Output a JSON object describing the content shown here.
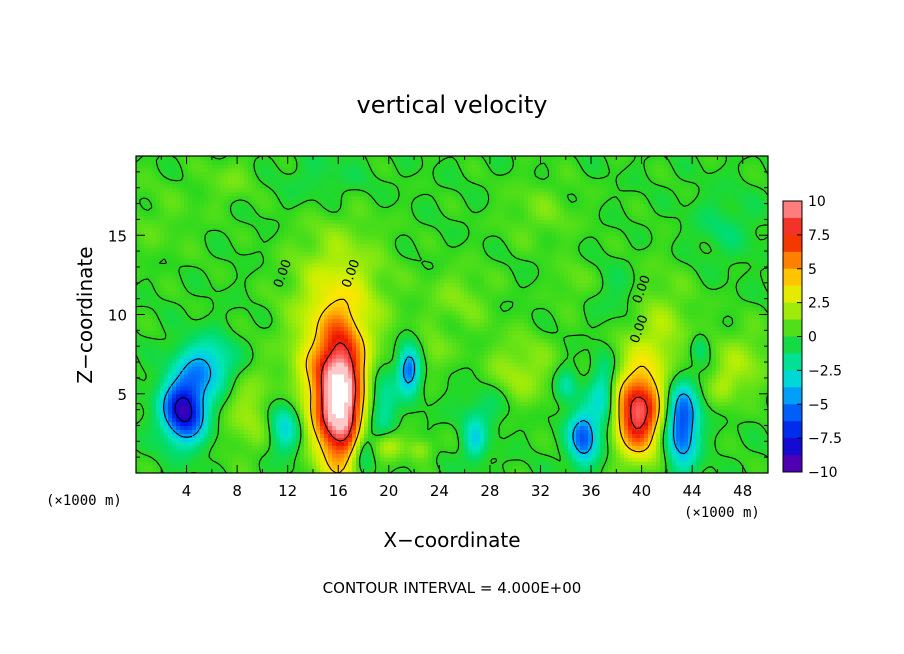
{
  "chart_data": {
    "type": "heatmap",
    "title": "vertical velocity",
    "xlabel": "X−coordinate",
    "ylabel": "Z−coordinate",
    "x_unit_left": "(×1000 m)",
    "x_unit_right": "(×1000 m)",
    "footer": "CONTOUR INTERVAL = 4.000E+00",
    "xlim": [
      0,
      50
    ],
    "ylim": [
      0,
      20
    ],
    "x_ticks": [
      4,
      8,
      12,
      16,
      20,
      24,
      28,
      32,
      36,
      40,
      44,
      48
    ],
    "x_tick_labels": [
      "4",
      "8",
      "12",
      "16",
      "20",
      "24",
      "28",
      "32",
      "36",
      "40",
      "44",
      "48"
    ],
    "y_ticks": [
      5,
      10,
      15
    ],
    "y_tick_labels": [
      "5",
      "10",
      "15"
    ],
    "contour_labels": [
      "0.00",
      "0.00",
      "0.00",
      "0.00"
    ],
    "colorbar": {
      "range": [
        -10,
        10
      ],
      "ticks": [
        10,
        7.5,
        5,
        2.5,
        0,
        -2.5,
        -5,
        -7.5,
        -10
      ],
      "tick_labels": [
        "10",
        "7.5",
        "5",
        "2.5",
        "0",
        "−2.5",
        "−5",
        "−7.5",
        "−10"
      ]
    },
    "features": [
      {
        "x": 16.1,
        "z": 4.6,
        "sx": 1.3,
        "sz": 2.9,
        "amp": 12
      },
      {
        "x": 39.7,
        "z": 3.7,
        "sx": 1.3,
        "sz": 1.8,
        "amp": 8.5
      },
      {
        "x": 3.8,
        "z": 4.0,
        "sx": 1.2,
        "sz": 1.4,
        "amp": -9
      },
      {
        "x": 5.6,
        "z": 6.8,
        "sx": 1.6,
        "sz": 1.2,
        "amp": -4
      },
      {
        "x": 43.2,
        "z": 3.2,
        "sx": 0.9,
        "sz": 1.9,
        "amp": -7
      },
      {
        "x": 35.4,
        "z": 2.3,
        "sx": 0.8,
        "sz": 1.2,
        "amp": -6
      },
      {
        "x": 37.0,
        "z": 5.0,
        "sx": 0.7,
        "sz": 1.6,
        "amp": -3.5
      },
      {
        "x": 21.6,
        "z": 6.6,
        "sx": 0.6,
        "sz": 1.0,
        "amp": -6
      },
      {
        "x": 19.5,
        "z": 4.5,
        "sx": 0.8,
        "sz": 1.4,
        "amp": -3
      },
      {
        "x": 11.8,
        "z": 3.0,
        "sx": 0.9,
        "sz": 1.3,
        "amp": -3.5
      },
      {
        "x": 18.0,
        "z": 1.5,
        "sx": 0.6,
        "sz": 1.0,
        "amp": -3
      },
      {
        "x": 26.8,
        "z": 2.0,
        "sx": 0.6,
        "sz": 0.9,
        "amp": -3
      },
      {
        "x": 34.0,
        "z": 5.5,
        "sx": 0.6,
        "sz": 0.8,
        "amp": -2.5
      },
      {
        "x": 44.6,
        "z": 8.0,
        "sx": 0.5,
        "sz": 0.6,
        "amp": -2
      },
      {
        "x": 16.0,
        "z": 10.5,
        "sx": 2.6,
        "sz": 3.5,
        "amp": 3
      },
      {
        "x": 41.0,
        "z": 8.0,
        "sx": 2.2,
        "sz": 3.0,
        "amp": 2.2
      },
      {
        "x": 9.0,
        "z": 4.0,
        "sx": 1.5,
        "sz": 2.0,
        "amp": 1.8
      },
      {
        "x": 13.5,
        "z": 5.5,
        "sx": 1.2,
        "sz": 2.5,
        "amp": 1.5
      },
      {
        "x": 30.5,
        "z": 6.5,
        "sx": 2.0,
        "sz": 1.6,
        "amp": 1.8
      },
      {
        "x": 48.0,
        "z": 7.0,
        "sx": 1.5,
        "sz": 1.5,
        "amp": 1.8
      },
      {
        "x": 46.5,
        "z": 5.5,
        "sx": 0.7,
        "sz": 0.8,
        "amp": 1.5
      },
      {
        "x": 20.0,
        "z": 1.8,
        "sx": 0.8,
        "sz": 0.6,
        "amp": 2.5
      },
      {
        "x": 22.5,
        "z": 1.5,
        "sx": 0.7,
        "sz": 0.5,
        "amp": 2
      },
      {
        "x": 23.5,
        "z": 7.5,
        "sx": 0.8,
        "sz": 0.8,
        "amp": 1.5
      },
      {
        "x": 25.5,
        "z": 11.0,
        "sx": 2.0,
        "sz": 1.5,
        "amp": 1.2
      },
      {
        "x": 32.0,
        "z": 16.5,
        "sx": 2.2,
        "sz": 1.5,
        "amp": 1.0
      },
      {
        "x": 7.5,
        "z": 18.5,
        "sx": 1.5,
        "sz": 1.0,
        "amp": 1.0
      },
      {
        "x": 38.5,
        "z": 11.0,
        "sx": 1.3,
        "sz": 1.5,
        "amp": -1.2
      },
      {
        "x": 46.5,
        "z": 15.5,
        "sx": 1.8,
        "sz": 1.5,
        "amp": -1.0
      },
      {
        "x": 2.0,
        "z": 16.0,
        "sx": 2.5,
        "sz": 2.0,
        "amp": 0.6
      },
      {
        "x": 15.0,
        "z": 18.5,
        "sx": 2.5,
        "sz": 1.2,
        "amp": -0.8
      },
      {
        "x": 27.5,
        "z": 4.0,
        "sx": 1.2,
        "sz": 1.0,
        "amp": -1.5
      },
      {
        "x": 34.5,
        "z": 12.0,
        "sx": 1.0,
        "sz": 1.0,
        "amp": 1.0
      }
    ]
  }
}
